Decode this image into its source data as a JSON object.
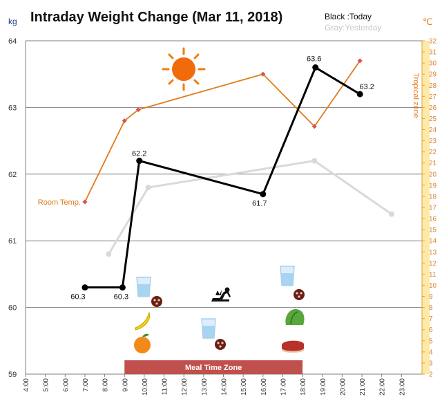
{
  "title": "Intraday Weight Change (Mar 11, 2018)",
  "legend": {
    "today": "Black :Today",
    "yesterday": "Gray:Yesterday"
  },
  "units": {
    "left": "kg",
    "right": "℃"
  },
  "labels": {
    "room_temp": "Room Temp.",
    "tropical_zone": "Tropical zone",
    "meal_zone": "Meal Time Zone"
  },
  "colors": {
    "today": "#000000",
    "yesterday": "#d9d9d9",
    "room_temp": "#e07b1a",
    "temp_axis_band": "#fde9a8",
    "meal_band": "#c0504d",
    "grid": "#7f7f7f"
  },
  "icons": [
    "sun-icon",
    "water-glass-icon",
    "pills-icon",
    "banana-icon",
    "orange-icon",
    "exercise-icon",
    "lettuce-icon",
    "steak-icon"
  ],
  "chart_data": {
    "type": "line",
    "title": "Intraday Weight Change (Mar 11, 2018)",
    "x_ticks": [
      "4:00",
      "5:00",
      "6:00",
      "7:00",
      "8:00",
      "9:00",
      "10:00",
      "11:00",
      "12:00",
      "13:00",
      "14:00",
      "15:00",
      "16:00",
      "17:00",
      "18:00",
      "19:00",
      "20:00",
      "21:00",
      "22:00",
      "23:00"
    ],
    "y_ticks": [
      59,
      60,
      61,
      62,
      63,
      64
    ],
    "ylim": [
      59,
      64
    ],
    "y2_ticks": [
      2,
      3,
      4,
      5,
      6,
      7,
      8,
      9,
      10,
      11,
      12,
      13,
      14,
      15,
      16,
      17,
      18,
      19,
      20,
      21,
      22,
      23,
      24,
      25,
      26,
      27,
      28,
      29,
      30,
      31,
      32
    ],
    "y2lim": [
      2,
      32
    ],
    "xlim": [
      4,
      24
    ],
    "grid": "horizontal",
    "series": [
      {
        "name": "Today",
        "axis": "left",
        "x": [
          7.0,
          8.9,
          9.75,
          16.0,
          18.65,
          20.9
        ],
        "values": [
          60.3,
          60.3,
          62.2,
          61.7,
          63.6,
          63.2
        ],
        "labels": [
          "60.3",
          "60.3",
          "62.2",
          "61.7",
          "63.6",
          "63.2"
        ]
      },
      {
        "name": "Yesterday",
        "axis": "left",
        "x": [
          8.2,
          10.2,
          18.6,
          22.5
        ],
        "values": [
          60.8,
          61.8,
          62.2,
          61.4
        ]
      },
      {
        "name": "Room Temp.",
        "axis": "right",
        "x": [
          7.0,
          9.0,
          9.7,
          16.0,
          18.6,
          20.9
        ],
        "values": [
          17.5,
          24.8,
          25.8,
          29.0,
          24.3,
          30.2
        ]
      }
    ],
    "meal_time_zone": [
      9.0,
      18.0
    ]
  }
}
